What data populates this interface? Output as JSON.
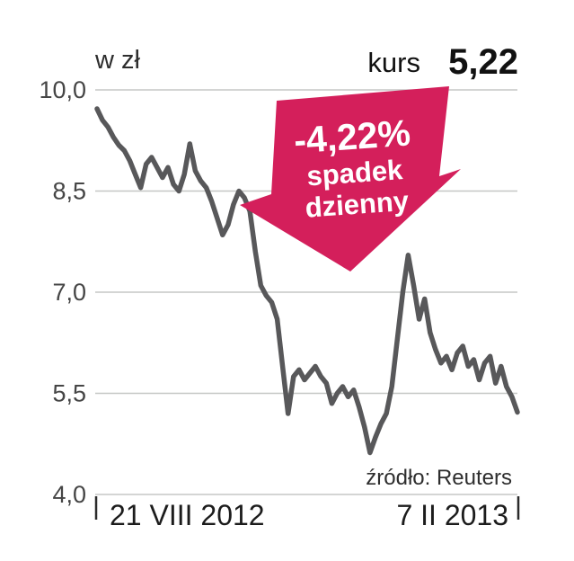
{
  "header": {
    "unit_label": "w zł",
    "kurs_label": "kurs",
    "kurs_value": "5,22"
  },
  "annotation": {
    "value": "-4,22%",
    "line1": "spadek",
    "line2": "dzienny"
  },
  "source": "źródło: Reuters",
  "chart_data": {
    "type": "line",
    "title": "",
    "ylabel": "w zł",
    "ylim": [
      4.0,
      10.0
    ],
    "yticks": [
      10.0,
      8.5,
      7.0,
      5.5,
      4.0
    ],
    "ytick_labels": [
      "10,0",
      "8,5",
      "7,0",
      "5,5",
      "4,0"
    ],
    "xtick_labels": [
      "21 VIII 2012",
      "7 II 2013"
    ],
    "grid": true,
    "legend": "none",
    "line_color": "#58585a",
    "grid_color": "#c5c7c5",
    "arrow_color": "#d41f5b",
    "last_value": 5.22,
    "daily_change_pct": -4.22,
    "values": [
      9.72,
      9.55,
      9.45,
      9.3,
      9.18,
      9.1,
      8.95,
      8.75,
      8.55,
      8.9,
      9.0,
      8.85,
      8.7,
      8.85,
      8.6,
      8.5,
      8.75,
      9.2,
      8.8,
      8.65,
      8.55,
      8.35,
      8.1,
      7.85,
      8.0,
      8.3,
      8.5,
      8.4,
      8.2,
      7.6,
      7.1,
      6.95,
      6.85,
      6.6,
      5.9,
      5.2,
      5.75,
      5.85,
      5.7,
      5.8,
      5.9,
      5.75,
      5.65,
      5.35,
      5.5,
      5.6,
      5.45,
      5.55,
      5.3,
      5.0,
      4.62,
      4.85,
      5.05,
      5.2,
      5.6,
      6.3,
      7.0,
      7.55,
      7.1,
      6.6,
      6.9,
      6.4,
      6.15,
      5.95,
      6.05,
      5.85,
      6.1,
      6.2,
      5.9,
      6.0,
      5.7,
      5.95,
      6.05,
      5.65,
      5.9,
      5.6,
      5.45,
      5.22
    ]
  }
}
